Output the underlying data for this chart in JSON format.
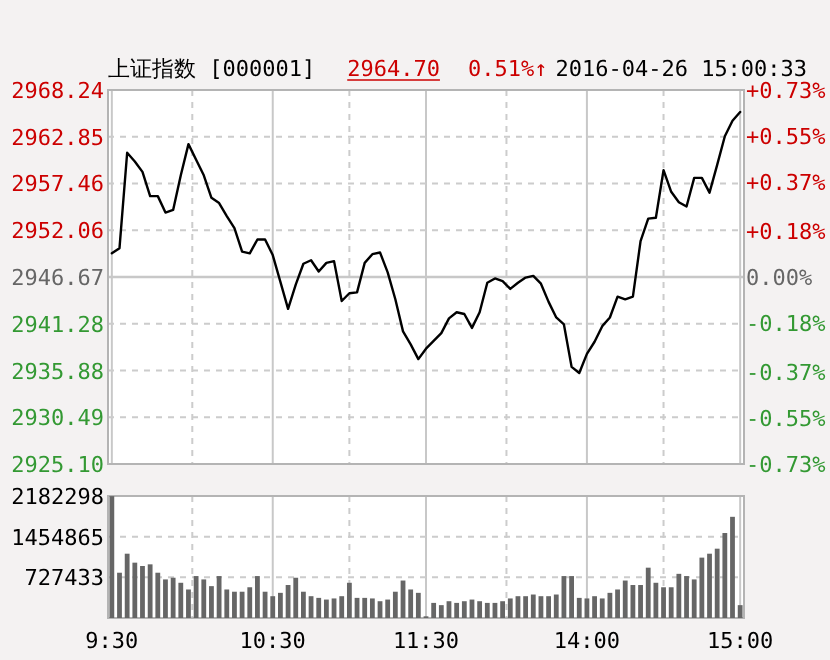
{
  "chart_data": [
    {
      "type": "line",
      "title": "上证指数 [000001]",
      "annotations": [
        "2964.70",
        "0.51%↑",
        "2016-04-26 15:00:33"
      ],
      "categories": [
        null,
        null,
        null,
        null,
        null,
        null,
        null,
        null,
        null,
        null,
        null,
        null,
        null,
        null,
        null,
        null,
        null,
        null,
        null,
        null,
        null,
        null,
        null,
        null,
        null,
        null,
        null,
        null,
        null,
        null,
        null,
        null,
        null,
        null,
        null,
        null,
        null,
        null,
        null,
        null,
        null,
        null,
        null,
        null,
        null,
        null,
        null,
        null,
        null,
        null,
        null,
        null,
        null,
        null,
        null,
        null,
        null,
        null,
        null,
        null,
        null,
        null,
        null,
        null,
        null,
        null,
        null,
        null,
        null,
        null,
        null,
        null,
        null,
        null,
        null,
        null,
        null,
        null,
        null,
        null,
        null,
        null,
        null
      ],
      "series": [
        {
          "color": "#000000",
          "values": [
            2949.4,
            2950.0,
            2961.0,
            2960.0,
            2958.8,
            2956.0,
            2956.0,
            2954.1,
            2954.4,
            2958.4,
            2962.0,
            2960.2,
            2958.4,
            2955.8,
            2955.2,
            2953.7,
            2952.3,
            2949.6,
            2949.4,
            2951.0,
            2951.0,
            2949.2,
            2946.1,
            2943.0,
            2945.8,
            2948.2,
            2948.6,
            2947.3,
            2948.3,
            2948.5,
            2943.9,
            2944.8,
            2944.9,
            2948.3,
            2949.3,
            2949.5,
            2947.2,
            2944.1,
            2940.4,
            2938.9,
            2937.2,
            2938.4,
            2939.3,
            2940.2,
            2941.9,
            2942.6,
            2942.4,
            2940.8,
            2942.6,
            2946.0,
            2946.5,
            2946.2,
            2945.3,
            2946.0,
            2946.6,
            2946.8,
            2945.9,
            2943.8,
            2942.0,
            2941.2,
            2936.3,
            2935.6,
            2937.8,
            2939.2,
            2941.0,
            2942.0,
            2944.4,
            2944.1,
            2944.4,
            2950.8,
            2953.4,
            2953.5,
            2959.0,
            2956.5,
            2955.3,
            2954.8,
            2958.1,
            2958.1,
            2956.4,
            2959.6,
            2962.9,
            2964.7,
            2965.7
          ]
        }
      ],
      "ylim": [
        2925.1,
        2968.24
      ],
      "yticks": [
        {
          "value": 2925.1,
          "label": "2925.10"
        },
        2930.49,
        2935.88,
        2941.28,
        2946.67,
        2952.06,
        2957.46,
        2962.85,
        2968.24
      ],
      "y2lim": [
        -0.73,
        0.73
      ],
      "y2ticks": [
        {
          "value": -0.73,
          "label": "-0.73%"
        },
        {
          "value": -0.55,
          "label": "-0.55%"
        },
        {
          "value": -0.37,
          "label": "-0.37%"
        },
        {
          "value": -0.18,
          "label": "-0.18%"
        },
        {
          "value": 0,
          "label": "0.00%"
        },
        {
          "value": 0.18,
          "label": "+0.18%"
        },
        {
          "value": 0.37,
          "label": "+0.37%"
        },
        {
          "value": 0.55,
          "label": "+0.55%"
        },
        {
          "value": 0.73,
          "label": "+0.73%"
        }
      ],
      "ref_lines": [
        {
          "axis": "y",
          "value": 2946.67,
          "color": "#c8c8c8"
        }
      ],
      "tick_labels": "y",
      "grid": true
    },
    {
      "type": "bar",
      "color": "#666666",
      "categories": [
        "9:30",
        null,
        null,
        null,
        null,
        null,
        null,
        null,
        null,
        null,
        null,
        null,
        null,
        null,
        null,
        null,
        null,
        null,
        null,
        null,
        null,
        "10:30",
        null,
        null,
        null,
        null,
        null,
        null,
        null,
        null,
        null,
        null,
        null,
        null,
        null,
        null,
        null,
        null,
        null,
        null,
        null,
        "11:30",
        null,
        null,
        null,
        null,
        null,
        null,
        null,
        null,
        null,
        null,
        null,
        null,
        null,
        null,
        null,
        null,
        null,
        null,
        null,
        null,
        "14:00",
        null,
        null,
        null,
        null,
        null,
        null,
        null,
        null,
        null,
        null,
        null,
        null,
        null,
        null,
        null,
        null,
        null,
        null,
        null,
        "15:00"
      ],
      "values": [
        2180000,
        810000,
        1150000,
        990000,
        930000,
        960000,
        810000,
        690000,
        720000,
        630000,
        510000,
        750000,
        690000,
        570000,
        750000,
        510000,
        470000,
        470000,
        550000,
        750000,
        470000,
        390000,
        450000,
        590000,
        720000,
        470000,
        390000,
        360000,
        330000,
        350000,
        390000,
        630000,
        360000,
        360000,
        350000,
        300000,
        330000,
        470000,
        670000,
        510000,
        450000,
        30000,
        270000,
        230000,
        300000,
        270000,
        300000,
        330000,
        300000,
        270000,
        270000,
        300000,
        350000,
        390000,
        390000,
        420000,
        390000,
        390000,
        420000,
        750000,
        750000,
        360000,
        350000,
        390000,
        350000,
        450000,
        510000,
        670000,
        590000,
        590000,
        900000,
        630000,
        550000,
        550000,
        790000,
        750000,
        690000,
        1080000,
        1150000,
        1240000,
        1520000,
        1810000,
        230000
      ],
      "ylim": [
        0,
        2182298
      ],
      "yticks": [
        727433,
        1454865,
        2182298
      ],
      "grid": true
    }
  ]
}
